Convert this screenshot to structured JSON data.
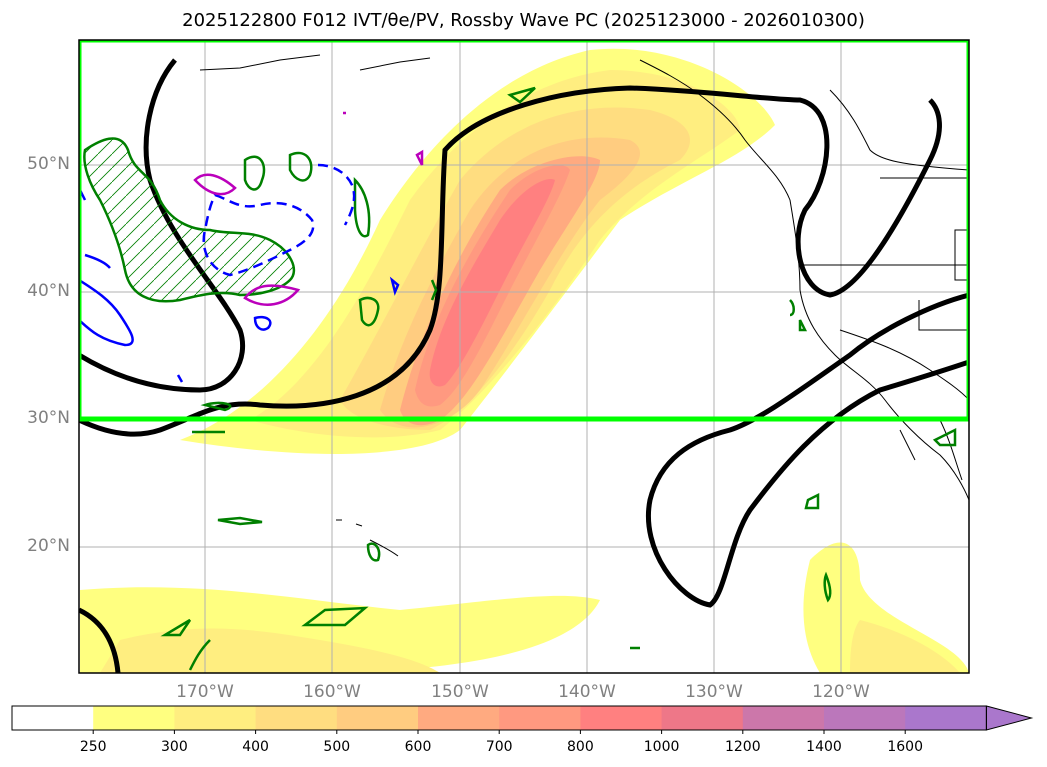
{
  "title": "2025122800 F012 IVT/θe/PV, Rossby Wave PC (2025123000 - 2026010300)",
  "map": {
    "lat_ticks": [
      "50°N",
      "40°N",
      "30°N",
      "20°N"
    ],
    "lon_ticks": [
      "170°W",
      "160°W",
      "150°W",
      "140°W",
      "130°W",
      "120°W"
    ],
    "highlight_box_color": "#00ff00",
    "rossby_contour_color": "#000000",
    "pv_positive_color": "#008000",
    "pv_negative_color": "#0000ff",
    "theta_color": "#bb00bb"
  },
  "colorbar": {
    "ticks": [
      "250",
      "300",
      "400",
      "500",
      "600",
      "700",
      "800",
      "1000",
      "1200",
      "1400",
      "1600"
    ],
    "colors": [
      "#ffffff",
      "#ffff80",
      "#ffee80",
      "#ffdd80",
      "#ffcc80",
      "#ffaa80",
      "#ff9980",
      "#ff8080",
      "#ee7788",
      "#cc77aa",
      "#bb77bb",
      "#aa77cc"
    ]
  }
}
